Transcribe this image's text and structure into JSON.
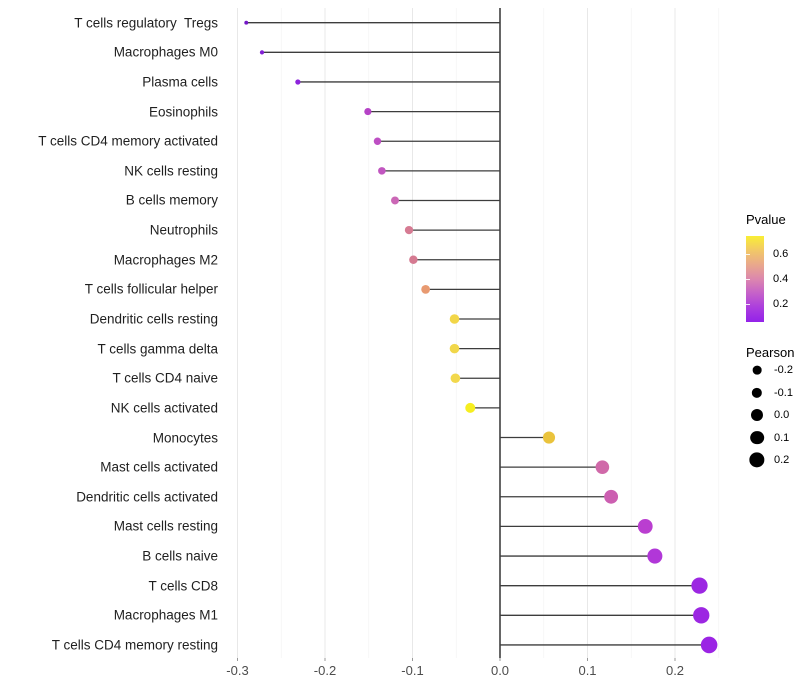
{
  "chart_data": {
    "type": "scatter",
    "variant": "lollipop",
    "title": "",
    "xlabel": "",
    "ylabel": "",
    "xlim": [
      -0.312,
      0.271
    ],
    "grid": "vertical major + minor, light gray, zero line solid black",
    "x_tick_values": [
      -0.3,
      -0.2,
      -0.1,
      0.0,
      0.1,
      0.2
    ],
    "x_tick_labels": [
      "-0.3",
      "-0.2",
      "-0.1",
      "0.0",
      "0.1",
      "0.2"
    ],
    "x_minor_tick_values": [
      -0.25,
      -0.15,
      -0.05,
      0.05,
      0.15,
      0.25
    ],
    "categories": [
      "T cells regulatory  Tregs",
      "Macrophages M0",
      "Plasma cells",
      "Eosinophils",
      "T cells CD4 memory activated",
      "NK cells resting",
      "B cells memory",
      "Neutrophils",
      "Macrophages M2",
      "T cells follicular helper",
      "Dendritic cells resting",
      "T cells gamma delta",
      "T cells CD4 naive",
      "NK cells activated",
      "Monocytes",
      "Mast cells activated",
      "Dendritic cells activated",
      "Mast cells resting",
      "B cells naive",
      "T cells CD8",
      "Macrophages M1",
      "T cells CD4 memory resting"
    ],
    "points": [
      {
        "label": "T cells regulatory  Tregs",
        "pearson": -0.29,
        "color": "#7318C6"
      },
      {
        "label": "Macrophages M0",
        "pearson": -0.272,
        "color": "#8220D4"
      },
      {
        "label": "Plasma cells",
        "pearson": -0.231,
        "color": "#8D24DC"
      },
      {
        "label": "Eosinophils",
        "pearson": -0.151,
        "color": "#B542C6"
      },
      {
        "label": "T cells CD4 memory activated",
        "pearson": -0.14,
        "color": "#BD4EC3"
      },
      {
        "label": "NK cells resting",
        "pearson": -0.135,
        "color": "#C156C0"
      },
      {
        "label": "B cells memory",
        "pearson": -0.12,
        "color": "#CB67B6"
      },
      {
        "label": "Neutrophils",
        "pearson": -0.104,
        "color": "#D67B93"
      },
      {
        "label": "Macrophages M2",
        "pearson": -0.099,
        "color": "#D57A91"
      },
      {
        "label": "T cells follicular helper",
        "pearson": -0.085,
        "color": "#E89A71"
      },
      {
        "label": "Dendritic cells resting",
        "pearson": -0.052,
        "color": "#F2D648"
      },
      {
        "label": "T cells gamma delta",
        "pearson": -0.052,
        "color": "#F1D74A"
      },
      {
        "label": "T cells CD4 naive",
        "pearson": -0.051,
        "color": "#F2D84C"
      },
      {
        "label": "NK cells activated",
        "pearson": -0.034,
        "color": "#F6EE20"
      },
      {
        "label": "Monocytes",
        "pearson": 0.056,
        "color": "#EAC33C"
      },
      {
        "label": "Mast cells activated",
        "pearson": 0.117,
        "color": "#D069A9"
      },
      {
        "label": "Dendritic cells activated",
        "pearson": 0.127,
        "color": "#CC5FB1"
      },
      {
        "label": "Mast cells resting",
        "pearson": 0.166,
        "color": "#BA3ED0"
      },
      {
        "label": "B cells naive",
        "pearson": 0.177,
        "color": "#B137D8"
      },
      {
        "label": "T cells CD8",
        "pearson": 0.228,
        "color": "#9C27E2"
      },
      {
        "label": "Macrophages M1",
        "pearson": 0.23,
        "color": "#9C27E2"
      },
      {
        "label": "T cells CD4 memory resting",
        "pearson": 0.239,
        "color": "#9B24E4"
      }
    ],
    "legend": {
      "position": "right",
      "pvalue": {
        "title": "Pvalue",
        "tick_values": [
          0.6,
          0.4,
          0.2
        ],
        "tick_labels": [
          "0.6",
          "0.4",
          "0.2"
        ],
        "range": [
          0.05,
          0.75
        ],
        "gradient_top_to_bottom": [
          "#F9EE35",
          "#F2C867",
          "#E9A88C",
          "#DC87AE",
          "#C561C9",
          "#AB3DDE",
          "#9322E9"
        ]
      },
      "pearson": {
        "title": "Pearson",
        "break_values": [
          -0.2,
          -0.1,
          0.0,
          0.1,
          0.2
        ],
        "break_labels": [
          "-0.2",
          "-0.1",
          "0.0",
          "0.1",
          "0.2"
        ],
        "symbol_color": "#000000"
      }
    },
    "colors": {
      "stem": "#3D3D3D",
      "zero_line": "#000000",
      "grid_major": "#E8E8E8",
      "grid_minor": "#F3F3F3",
      "axis_text": "#4D4D4D",
      "category_text": "#1F1F1F"
    }
  }
}
